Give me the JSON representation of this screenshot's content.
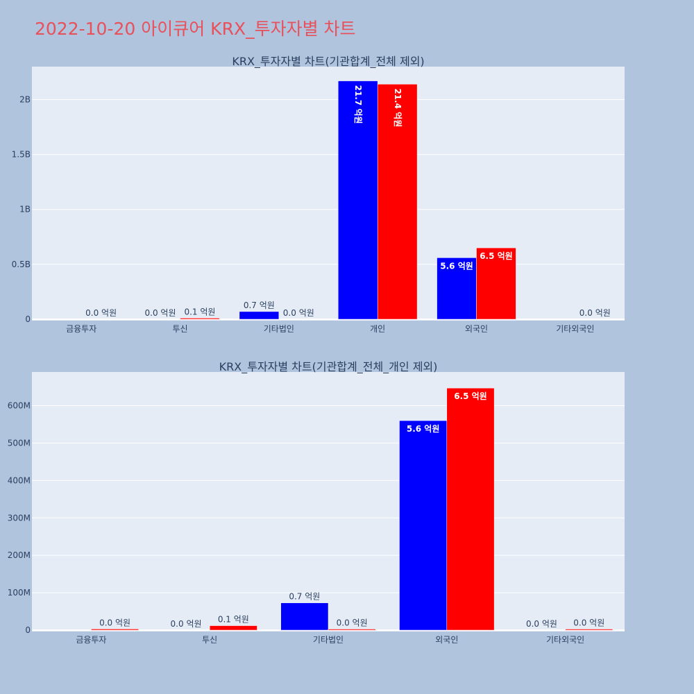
{
  "page_title": "2022-10-20 아이큐어 KRX_투자자별 차트",
  "colors": {
    "background": "#b0c4de",
    "plot_bg": "#e5ecf6",
    "title": "#e8505b",
    "series_a": "#0000ff",
    "series_b": "#ff0000"
  },
  "chart_data": [
    {
      "type": "bar",
      "title": "KRX_투자자별 차트(기관합계_전체 제외)",
      "categories": [
        "금융투자",
        "투신",
        "기타법인",
        "개인",
        "외국인",
        "기타외국인"
      ],
      "ylim": [
        0,
        2300000000
      ],
      "yticks": [
        0,
        500000000,
        1000000000,
        1500000000,
        2000000000
      ],
      "ytick_labels": [
        "0",
        "0.5B",
        "1B",
        "1.5B",
        "2B"
      ],
      "series": [
        {
          "color": "#0000ff",
          "values": [
            0,
            0,
            70000000,
            2170000000,
            560000000,
            0
          ],
          "labels": [
            "",
            "0.0 억원",
            "0.7 억원",
            "21.7 억원",
            "5.6 억원",
            ""
          ]
        },
        {
          "color": "#ff0000",
          "values": [
            0,
            10000000,
            0,
            2140000000,
            650000000,
            0
          ],
          "labels": [
            "0.0 억원",
            "0.1 억원",
            "0.0 억원",
            "21.4 억원",
            "6.5 억원",
            "0.0 억원"
          ]
        }
      ]
    },
    {
      "type": "bar",
      "title": "KRX_투자자별 차트(기관합계_전체_개인 제외)",
      "categories": [
        "금융투자",
        "투신",
        "기타법인",
        "외국인",
        "기타외국인"
      ],
      "ylim": [
        0,
        690000000
      ],
      "yticks": [
        0,
        100000000,
        200000000,
        300000000,
        400000000,
        500000000,
        600000000
      ],
      "ytick_labels": [
        "0",
        "100M",
        "200M",
        "300M",
        "400M",
        "500M",
        "600M"
      ],
      "series": [
        {
          "color": "#0000ff",
          "values": [
            0,
            0,
            73000000,
            560000000,
            0
          ],
          "labels": [
            "",
            "0.0 억원",
            "0.7 억원",
            "5.6 억원",
            "0.0 억원"
          ]
        },
        {
          "color": "#ff0000",
          "values": [
            3000000,
            12000000,
            1000000,
            647000000,
            1000000
          ],
          "labels": [
            "0.0 억원",
            "0.1 억원",
            "0.0 억원",
            "6.5 억원",
            "0.0 억원"
          ]
        }
      ]
    }
  ]
}
